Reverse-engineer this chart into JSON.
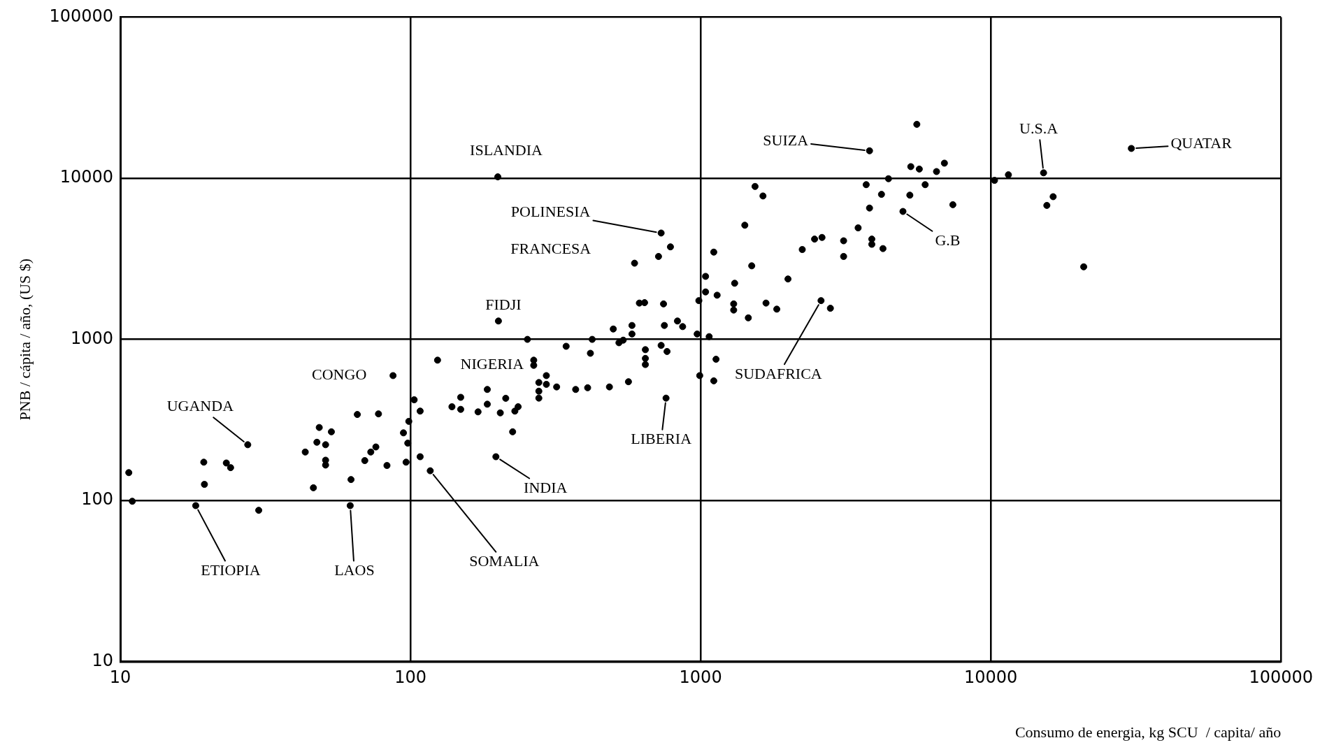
{
  "chart_data": {
    "type": "scatter",
    "xlabel": "Consumo de energia, kg SCU  / capita/ año",
    "ylabel": "PNB / cápita / año, (US $)",
    "log": "xy",
    "grid": true,
    "legend": false,
    "marker": "circle",
    "xlim": [
      10,
      100000
    ],
    "xticks": [
      10,
      100,
      1000,
      10000,
      100000
    ],
    "ylim": [
      10,
      100000
    ],
    "yticks": [
      10,
      100,
      1000,
      10000,
      100000
    ],
    "series": [
      {
        "color": "#000000",
        "x": [
          10.7,
          11,
          18.2,
          19.4,
          19.5,
          23.2,
          24,
          27.5,
          30,
          43.4,
          46.3,
          47.6,
          48.5,
          51,
          51,
          51,
          53.4,
          62,
          62.4,
          65.6,
          69.6,
          73,
          76,
          77.6,
          83,
          87.1,
          94.6,
          96.6,
          97.9,
          98.7,
          103,
          108,
          108,
          117,
          124,
          139,
          149,
          149,
          171,
          184,
          184,
          197,
          204,
          213,
          225,
          229,
          235,
          200,
          731,
          787,
          716,
          592,
          1110,
          1420,
          1540,
          1640,
          1500,
          1310,
          1140,
          1040,
          1040,
          986,
          1300,
          1300,
          1460,
          1680,
          1830,
          2000,
          2240,
          2470,
          2620,
          3110,
          3110,
          3490,
          2600,
          2800,
          3720,
          3820,
          615,
          641,
          745,
          500,
          580,
          580,
          750,
          832,
          867,
          973,
          1070,
          1130,
          1110,
          993,
          253,
          201,
          344,
          417,
          423,
          523,
          541,
          266,
          266,
          277,
          277,
          277,
          294,
          294,
          319,
          371,
          408,
          485,
          564,
          645,
          645,
          645,
          731,
          766,
          760,
          5560,
          3820,
          5300,
          5670,
          6920,
          6500,
          4440,
          5940,
          4200,
          5260,
          7400,
          4980,
          3890,
          3890,
          4250,
          10300,
          11500,
          15200,
          16400,
          15600,
          20900,
          30500
        ],
        "values": [
          149,
          99,
          93,
          173,
          126,
          171,
          160,
          222,
          87,
          200,
          120,
          230,
          284,
          222,
          178,
          166,
          267,
          93,
          135,
          342,
          177,
          200,
          215,
          345,
          165,
          596,
          263,
          173,
          227,
          310,
          422,
          359,
          187,
          153,
          743,
          382,
          437,
          368,
          355,
          489,
          396,
          187,
          350,
          431,
          267,
          359,
          382,
          10200,
          4570,
          3750,
          3270,
          2970,
          3480,
          5110,
          8890,
          7760,
          2860,
          2230,
          1880,
          2460,
          1970,
          1740,
          1660,
          1520,
          1360,
          1680,
          1540,
          2370,
          3610,
          4190,
          4290,
          4090,
          3270,
          4920,
          1740,
          1560,
          9120,
          6530,
          1680,
          1690,
          1660,
          1160,
          1220,
          1080,
          1220,
          1300,
          1200,
          1080,
          1040,
          753,
          553,
          596,
          1000,
          1300,
          906,
          820,
          1000,
          953,
          989,
          743,
          690,
          540,
          477,
          432,
          596,
          526,
          507,
          489,
          501,
          507,
          546,
          863,
          762,
          698,
          918,
          841,
          432,
          21600,
          14800,
          11800,
          11400,
          12400,
          11000,
          9930,
          9120,
          7940,
          7850,
          6850,
          6220,
          4190,
          3890,
          3660,
          9700,
          10500,
          10800,
          7680,
          6780,
          2820,
          15300
        ]
      }
    ],
    "annotations": [
      {
        "text": "ISLANDIA",
        "x": 200,
        "y": 10200
      },
      {
        "text": "SUIZA",
        "x": 3820,
        "y": 14800
      },
      {
        "text": "U.S.A",
        "x": 15200,
        "y": 10800
      },
      {
        "text": "QUATAR",
        "x": 30500,
        "y": 15300
      },
      {
        "text": "POLINESIA",
        "x": 731,
        "y": 4570
      },
      "FRANCESA",
      {
        "text": "G.B",
        "x": 4980,
        "y": 6220
      },
      {
        "text": "FIDJI",
        "x": 201,
        "y": 1300
      },
      {
        "text": "CONGO",
        "x": 87.1,
        "y": 596
      },
      {
        "text": "NIGERIA",
        "x": 124,
        "y": 743
      },
      {
        "text": "SUDAFRICA",
        "x": 2600,
        "y": 1740
      },
      {
        "text": "UGANDA",
        "x": 27.5,
        "y": 222
      },
      {
        "text": "LIBERIA",
        "x": 760,
        "y": 432
      },
      {
        "text": "INDIA",
        "x": 197,
        "y": 187
      },
      {
        "text": "ETIOPIA",
        "x": 18.2,
        "y": 93
      },
      {
        "text": "LAOS",
        "x": 62,
        "y": 93
      },
      {
        "text": "SOMALIA",
        "x": 117,
        "y": 153
      }
    ]
  }
}
